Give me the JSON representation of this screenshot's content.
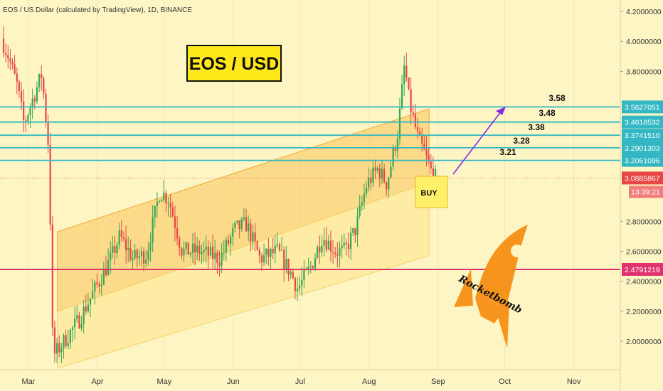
{
  "header": {
    "title": "EOS / US Dollar (calculated by TradingView), 1D, BINANCE"
  },
  "annotations": {
    "main_label": "EOS / USD",
    "buy_label": "BUY",
    "rocket_text": "Rocketbomb",
    "targets": [
      "3.58",
      "3.48",
      "3.38",
      "3.28",
      "3.21"
    ]
  },
  "colors": {
    "background": "#fdf6c4",
    "channel_upper": "#f9c35a",
    "channel_lower": "#fde79a",
    "level_line": "#33b7c4",
    "support_line": "#e0326f",
    "candle_up": "#34a853",
    "candle_down": "#e84545",
    "rocket": "#f7941d",
    "arrow": "#8a2be2"
  },
  "chart_data": {
    "type": "candlestick",
    "title": "EOS / USD",
    "x_tick_labels": [
      "Mar",
      "Apr",
      "May",
      "Jun",
      "Jul",
      "Aug",
      "Sep",
      "Oct",
      "Nov"
    ],
    "y_tick_labels": [
      "4.2000000",
      "4.0000000",
      "3.8000000",
      "2.8000000",
      "2.6000000",
      "2.4000000",
      "2.2000000",
      "2.0000000"
    ],
    "ylim": [
      1.82,
      4.25
    ],
    "price_labels": [
      {
        "value": 3.5627051,
        "label": "3.5627051"
      },
      {
        "value": 3.4618532,
        "label": "3.4618532"
      },
      {
        "value": 3.374151,
        "label": "3.3741510"
      },
      {
        "value": 3.2901303,
        "label": "3.2901303"
      },
      {
        "value": 3.2061096,
        "label": "3.2061096"
      },
      {
        "value": 2.4791219,
        "label": "2.4791219"
      }
    ],
    "current_price": {
      "value": 3.0885867,
      "label": "3.0885867"
    },
    "countdown": "13:39:21",
    "horizontal_levels": [
      3.5627051,
      3.4618532,
      3.374151,
      3.2901303,
      3.2061096
    ],
    "support_level": 2.4791219,
    "price_path": [
      [
        "2020-02-18",
        4.05
      ],
      [
        "2020-02-22",
        3.9
      ],
      [
        "2020-02-26",
        3.7
      ],
      [
        "2020-02-29",
        3.45
      ],
      [
        "2020-03-04",
        3.62
      ],
      [
        "2020-03-08",
        3.78
      ],
      [
        "2020-03-11",
        3.3
      ],
      [
        "2020-03-12",
        2.7
      ],
      [
        "2020-03-13",
        1.9
      ],
      [
        "2020-03-18",
        2.0
      ],
      [
        "2020-03-25",
        2.15
      ],
      [
        "2020-04-01",
        2.35
      ],
      [
        "2020-04-08",
        2.55
      ],
      [
        "2020-04-12",
        2.7
      ],
      [
        "2020-04-18",
        2.55
      ],
      [
        "2020-04-24",
        2.58
      ],
      [
        "2020-04-30",
        3.0
      ],
      [
        "2020-05-04",
        2.95
      ],
      [
        "2020-05-10",
        2.6
      ],
      [
        "2020-05-18",
        2.6
      ],
      [
        "2020-05-27",
        2.55
      ],
      [
        "2020-06-03",
        2.75
      ],
      [
        "2020-06-08",
        2.78
      ],
      [
        "2020-06-14",
        2.55
      ],
      [
        "2020-06-22",
        2.6
      ],
      [
        "2020-06-28",
        2.45
      ],
      [
        "2020-07-01",
        2.35
      ],
      [
        "2020-07-07",
        2.5
      ],
      [
        "2020-07-12",
        2.7
      ],
      [
        "2020-07-18",
        2.6
      ],
      [
        "2020-07-22",
        2.6
      ],
      [
        "2020-07-27",
        2.75
      ],
      [
        "2020-08-01",
        3.05
      ],
      [
        "2020-08-06",
        3.15
      ],
      [
        "2020-08-10",
        3.05
      ],
      [
        "2020-08-15",
        3.4
      ],
      [
        "2020-08-18",
        3.85
      ],
      [
        "2020-08-20",
        3.6
      ],
      [
        "2020-08-24",
        3.35
      ],
      [
        "2020-08-27",
        3.25
      ],
      [
        "2020-08-31",
        3.09
      ]
    ],
    "channel_upper_band": [
      [
        "2020-03-14",
        2.73
      ],
      [
        "2020-08-28",
        3.55
      ]
    ],
    "channel_mid_band": [
      [
        "2020-03-14",
        2.2
      ],
      [
        "2020-08-28",
        3.06
      ]
    ],
    "channel_lower_band": [
      [
        "2020-03-14",
        1.82
      ],
      [
        "2020-08-28",
        2.57
      ]
    ]
  }
}
